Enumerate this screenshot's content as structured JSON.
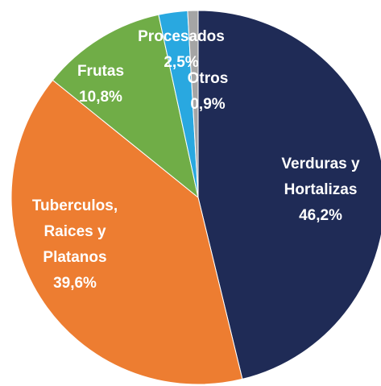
{
  "chart_data": {
    "type": "pie",
    "categories": [
      "Verduras y Hortalizas",
      "Tuberculos, Raices y Platanos",
      "Frutas",
      "Procesados",
      "Otros"
    ],
    "values": [
      46.2,
      39.6,
      10.8,
      2.5,
      0.9
    ],
    "value_labels": [
      "46,2%",
      "39,6%",
      "10,8%",
      "2,5%",
      "0,9%"
    ],
    "colors": [
      "#1f2b56",
      "#ed7d31",
      "#70ad47",
      "#29a8e0",
      "#a5a5a5"
    ]
  }
}
